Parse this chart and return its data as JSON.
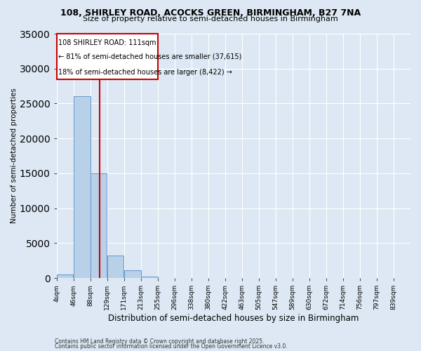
{
  "title1": "108, SHIRLEY ROAD, ACOCKS GREEN, BIRMINGHAM, B27 7NA",
  "title2": "Size of property relative to semi-detached houses in Birmingham",
  "xlabel": "Distribution of semi-detached houses by size in Birmingham",
  "ylabel": "Number of semi-detached properties",
  "categories": [
    "4sqm",
    "46sqm",
    "88sqm",
    "129sqm",
    "171sqm",
    "213sqm",
    "255sqm",
    "296sqm",
    "338sqm",
    "380sqm",
    "422sqm",
    "463sqm",
    "505sqm",
    "547sqm",
    "589sqm",
    "630sqm",
    "672sqm",
    "714sqm",
    "756sqm",
    "797sqm",
    "839sqm"
  ],
  "bar_values": [
    500,
    26000,
    15000,
    3200,
    1100,
    200,
    0,
    0,
    0,
    0,
    0,
    0,
    0,
    0,
    0,
    0,
    0,
    0,
    0,
    0,
    0
  ],
  "bar_color": "#b8d0e8",
  "bar_edge_color": "#6699cc",
  "background_color": "#dde8f4",
  "grid_color": "#ffffff",
  "property_size_sqm": 111,
  "property_label": "108 SHIRLEY ROAD: 111sqm",
  "annotation_line1": "← 81% of semi-detached houses are smaller (37,615)",
  "annotation_line2": "18% of semi-detached houses are larger (8,422) →",
  "vline_color": "#cc0000",
  "annotation_box_color": "#cc0000",
  "ylim": [
    0,
    35000
  ],
  "yticks": [
    0,
    5000,
    10000,
    15000,
    20000,
    25000,
    30000,
    35000
  ],
  "bin_edges": [
    4,
    46,
    88,
    129,
    171,
    213,
    255,
    296,
    338,
    380,
    422,
    463,
    505,
    547,
    589,
    630,
    672,
    714,
    756,
    797,
    839,
    881
  ],
  "footnote1": "Contains HM Land Registry data © Crown copyright and database right 2025.",
  "footnote2": "Contains public sector information licensed under the Open Government Licence v3.0."
}
